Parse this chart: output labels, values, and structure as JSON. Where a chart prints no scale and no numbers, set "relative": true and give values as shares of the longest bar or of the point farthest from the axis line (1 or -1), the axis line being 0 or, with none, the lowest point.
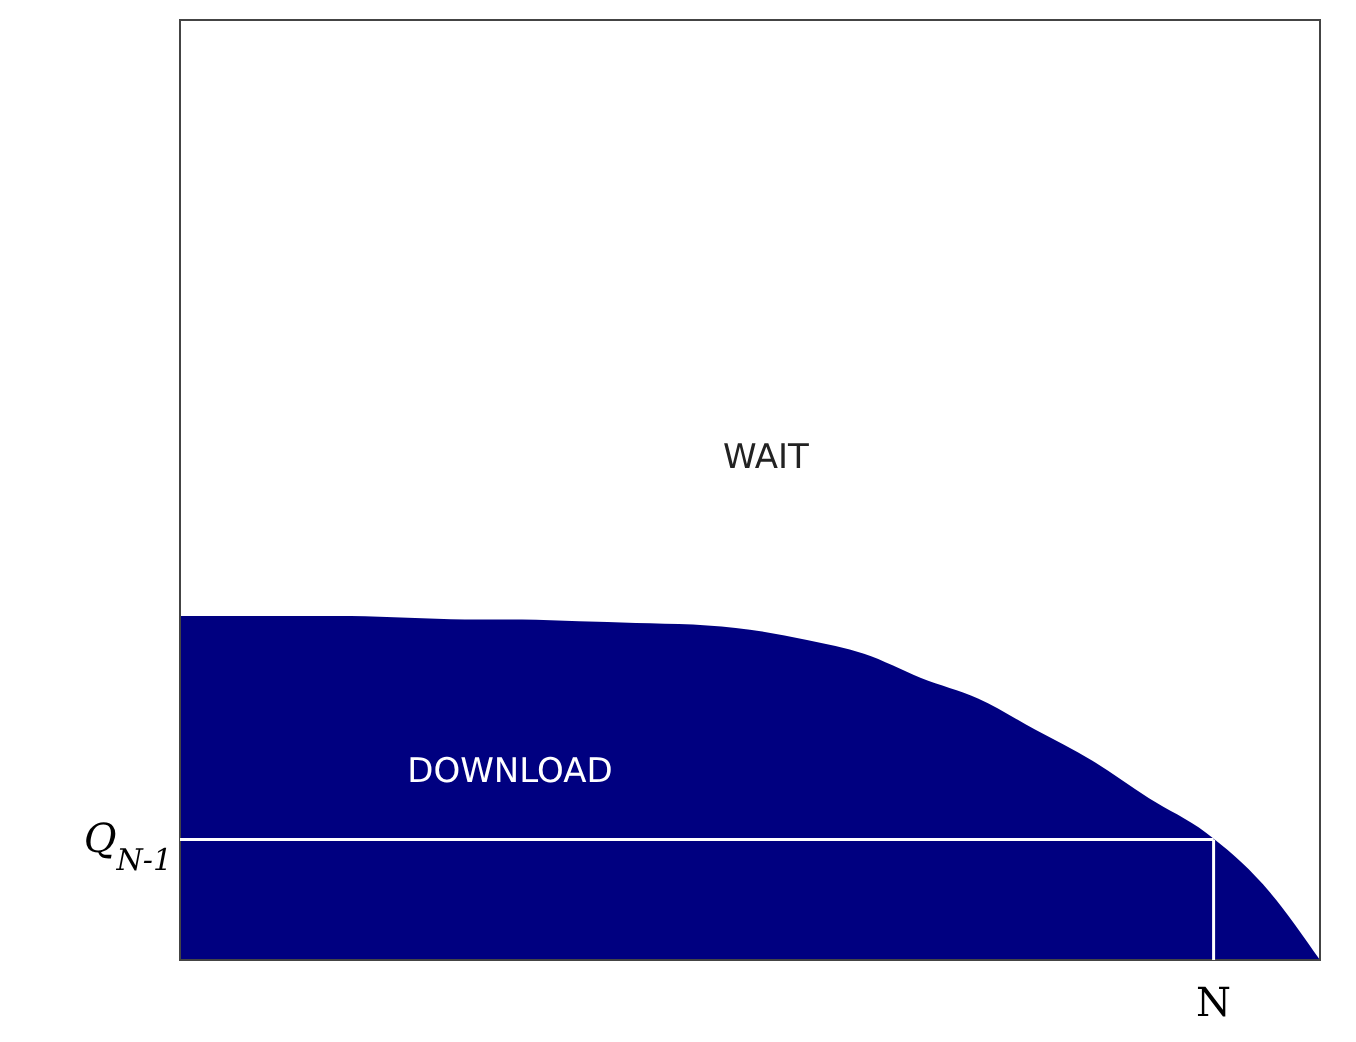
{
  "chart_data": {
    "type": "area",
    "relative": true,
    "categories": [
      null,
      null,
      null,
      null,
      null,
      null,
      null,
      null,
      null,
      null,
      null,
      null,
      null,
      null,
      null,
      null,
      null,
      null,
      null,
      null,
      null
    ],
    "series": [
      {
        "color": "#000080",
        "values": [
          1,
          1,
          1,
          1,
          0.995,
          0.99,
          0.99,
          0.985,
          0.98,
          0.975,
          0.96,
          0.93,
          0.89,
          0.82,
          0.76,
          0.67,
          0.58,
          0.47,
          0.37,
          0.22,
          0
        ]
      }
    ],
    "ref_lines": [
      {
        "axis": "y",
        "value": 0.35,
        "label": "Q$_{N-1}$",
        "color": "#ffffff"
      }
    ],
    "annotations": [
      "WAIT",
      "DOWNLOAD",
      "N"
    ]
  }
}
